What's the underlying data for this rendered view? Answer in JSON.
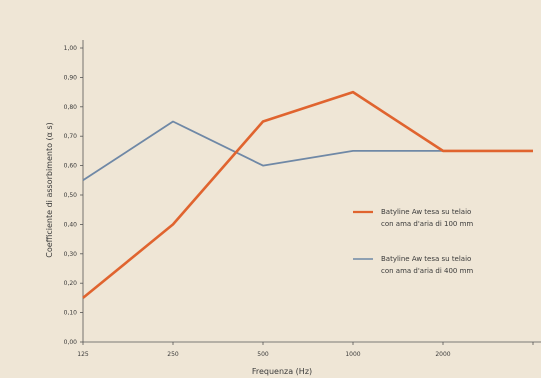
{
  "chart_data": {
    "type": "line",
    "xlabel": "Frequenza (Hz)",
    "ylabel": "Coefficiente di assorbimento (α s)",
    "categories": [
      "125",
      "250",
      "500",
      "1000",
      "2000",
      ""
    ],
    "ylim": [
      0.0,
      1.0
    ],
    "yticks": [
      "0,00",
      "0,10",
      "0,20",
      "0,30",
      "0,40",
      "0,50",
      "0,60",
      "0,70",
      "0,80",
      "0,90",
      "1,00"
    ],
    "grid": false,
    "legend_position": "right",
    "series": [
      {
        "name": "Batyline Aw tesa su telaio con ama d'aria di 100 mm",
        "legend_lines": [
          "Batyline Aw tesa su telaio",
          "con ama d'aria di 100 mm"
        ],
        "color": "#e0642f",
        "values": [
          0.15,
          0.4,
          0.75,
          0.85,
          0.65,
          0.65
        ]
      },
      {
        "name": "Batyline Aw tesa su telaio con ama d'aria di 400 mm",
        "legend_lines": [
          "Batyline Aw tesa su telaio",
          "con ama d'aria di 400 mm"
        ],
        "color": "#6f88a6",
        "values": [
          0.55,
          0.75,
          0.6,
          0.65,
          0.65,
          0.65
        ]
      }
    ]
  }
}
